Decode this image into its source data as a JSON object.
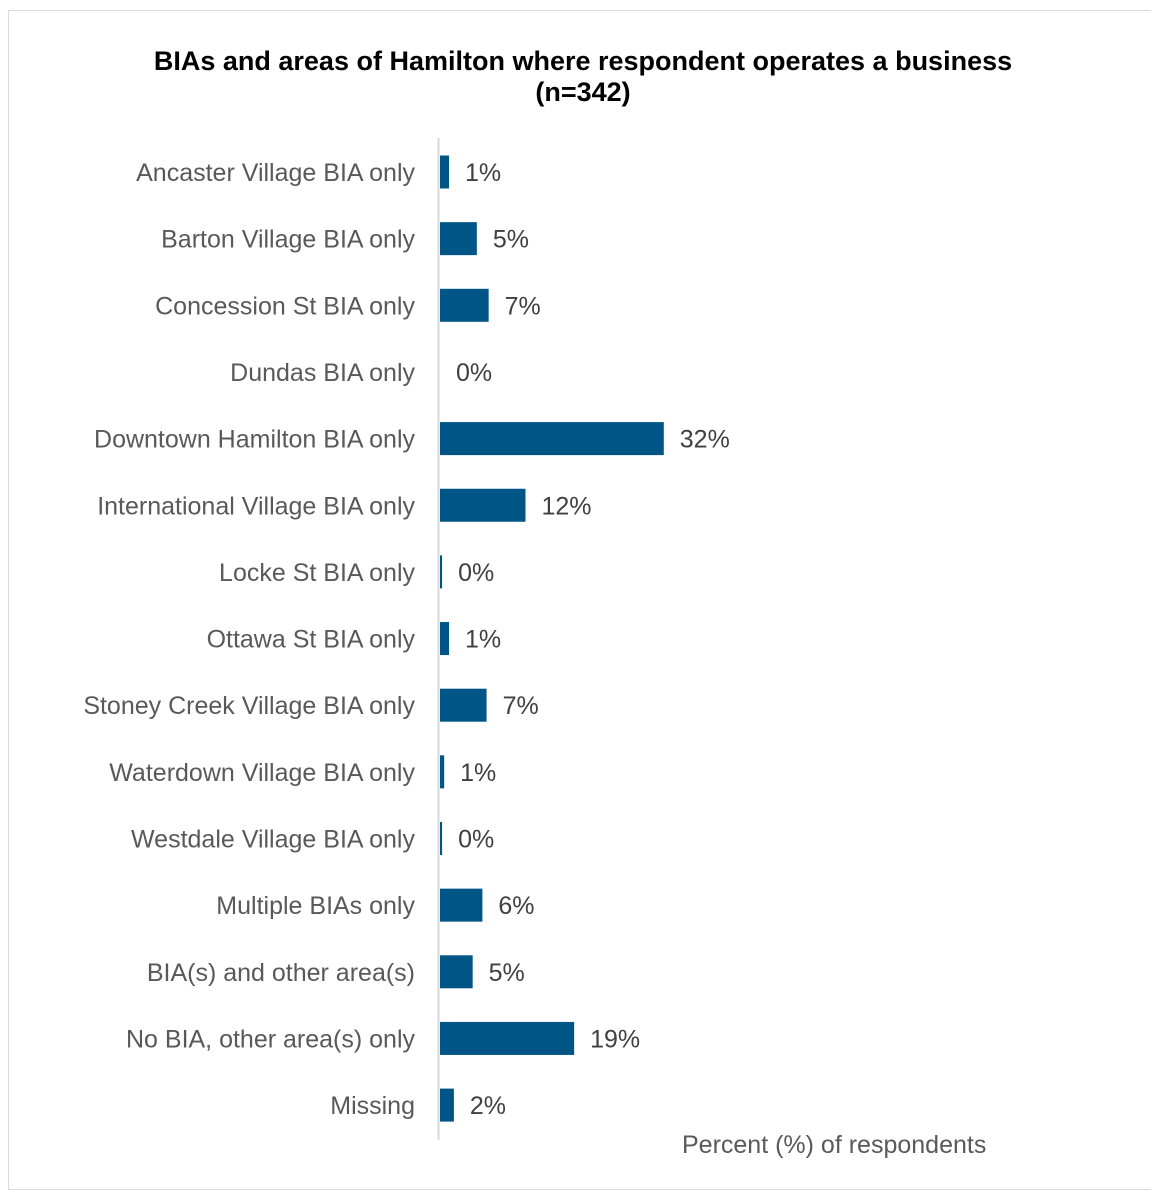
{
  "chart_data": {
    "type": "bar",
    "orientation": "horizontal",
    "title": "BIAs and areas of Hamilton where respondent operates a business",
    "subtitle": "(n=342)",
    "xlabel": "Percent (%) of respondents",
    "ylabel": "",
    "categories": [
      "Ancaster Village BIA only",
      "Barton Village BIA only",
      "Concession St BIA only",
      "Dundas BIA only",
      "Downtown Hamilton BIA only",
      "International Village BIA only",
      "Locke St BIA only",
      "Ottawa St BIA only",
      "Stoney Creek Village BIA only",
      "Waterdown Village BIA only",
      "Westdale Village BIA only",
      "Multiple BIAs only",
      "BIA(s) and other area(s)",
      "No BIA, other area(s) only",
      "Missing"
    ],
    "values": [
      1.3,
      5.3,
      7.0,
      0,
      32.2,
      12.3,
      0.3,
      1.3,
      6.7,
      0.6,
      0.3,
      6.1,
      4.7,
      19.3,
      2.0
    ],
    "data_labels": [
      "1%",
      "5%",
      "7%",
      "0%",
      "32%",
      "12%",
      "0%",
      "1%",
      "7%",
      "1%",
      "0%",
      "6%",
      "5%",
      "19%",
      "2%"
    ],
    "xlim": [
      0,
      100
    ],
    "grid": false,
    "legend": "none",
    "bar_color": "#005587"
  }
}
